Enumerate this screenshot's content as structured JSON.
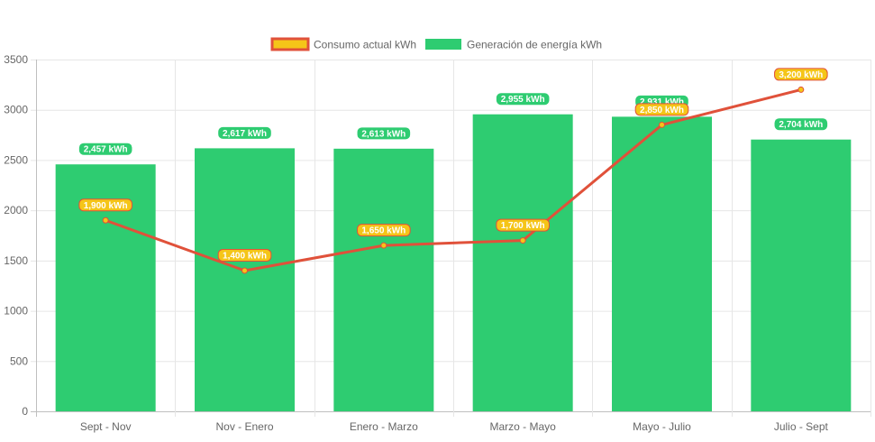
{
  "chart_data": {
    "type": "bar",
    "categories": [
      "Sept - Nov",
      "Nov - Enero",
      "Enero - Marzo",
      "Marzo - Mayo",
      "Mayo - Julio",
      "Julio - Sept"
    ],
    "ylim": [
      0,
      3500
    ],
    "yticks": [
      0,
      500,
      1000,
      1500,
      2000,
      2500,
      3000,
      3500
    ],
    "grid": true,
    "legend_position": "top-center",
    "series": [
      {
        "name": "Consumo actual kWh",
        "type": "line",
        "values": [
          1900,
          1400,
          1650,
          1700,
          2850,
          3200
        ],
        "labels": [
          "1,900 kWh",
          "1,400 kWh",
          "1,650 kWh",
          "1,700 kWh",
          "2,850 kWh",
          "3,200 kWh"
        ],
        "line_color": "#e0513a",
        "fill_color": "#f5c518"
      },
      {
        "name": "Generación de energía kWh",
        "type": "bar",
        "values": [
          2457,
          2617,
          2613,
          2955,
          2931,
          2704
        ],
        "labels": [
          "2,457 kWh",
          "2,617 kWh",
          "2,613 kWh",
          "2,955 kWh",
          "2,931 kWh",
          "2,704 kWh"
        ],
        "color": "#2ecc71"
      }
    ]
  }
}
